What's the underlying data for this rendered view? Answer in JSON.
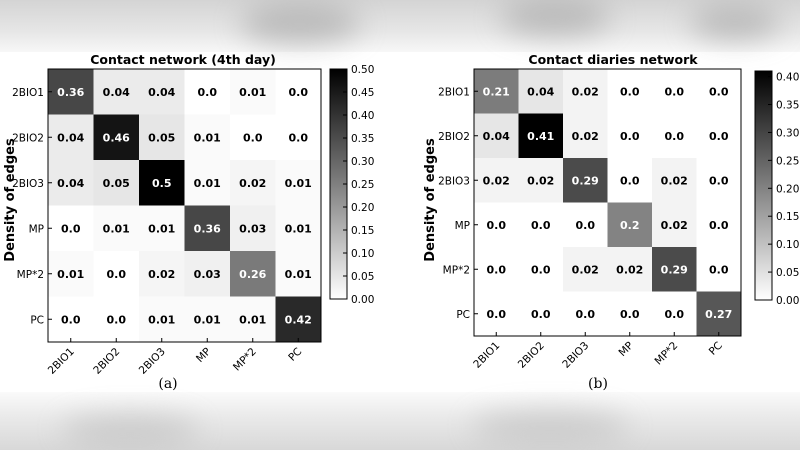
{
  "chart_data": [
    {
      "type": "heatmap",
      "title": "Contact network (4th day)",
      "ylabel": "Density of edges",
      "caption": "(a)",
      "categories": [
        "2BIO1",
        "2BIO2",
        "2BIO3",
        "MP",
        "MP*2",
        "PC"
      ],
      "values": [
        [
          0.36,
          0.04,
          0.04,
          0.0,
          0.01,
          0.0
        ],
        [
          0.04,
          0.46,
          0.05,
          0.01,
          0.0,
          0.0
        ],
        [
          0.04,
          0.05,
          0.5,
          0.01,
          0.02,
          0.01
        ],
        [
          0.0,
          0.01,
          0.01,
          0.36,
          0.03,
          0.01
        ],
        [
          0.01,
          0.0,
          0.02,
          0.03,
          0.26,
          0.01
        ],
        [
          0.0,
          0.0,
          0.01,
          0.01,
          0.01,
          0.42
        ]
      ],
      "labels": [
        [
          "0.36",
          "0.04",
          "0.04",
          "0.0",
          "0.01",
          "0.0"
        ],
        [
          "0.04",
          "0.46",
          "0.05",
          "0.01",
          "0.0",
          "0.0"
        ],
        [
          "0.04",
          "0.05",
          "0.5",
          "0.01",
          "0.02",
          "0.01"
        ],
        [
          "0.0",
          "0.01",
          "0.01",
          "0.36",
          "0.03",
          "0.01"
        ],
        [
          "0.01",
          "0.0",
          "0.02",
          "0.03",
          "0.26",
          "0.01"
        ],
        [
          "0.0",
          "0.0",
          "0.01",
          "0.01",
          "0.01",
          "0.42"
        ]
      ],
      "colorbar": {
        "min": 0.0,
        "max": 0.5,
        "ticks": [
          "0.00",
          "0.05",
          "0.10",
          "0.15",
          "0.20",
          "0.25",
          "0.30",
          "0.35",
          "0.40",
          "0.45",
          "0.50"
        ],
        "tick_values": [
          0,
          0.05,
          0.1,
          0.15,
          0.2,
          0.25,
          0.3,
          0.35,
          0.4,
          0.45,
          0.5
        ]
      }
    },
    {
      "type": "heatmap",
      "title": "Contact diaries network",
      "ylabel": "Density of edges",
      "caption": "(b)",
      "categories": [
        "2BIO1",
        "2BIO2",
        "2BIO3",
        "MP",
        "MP*2",
        "PC"
      ],
      "values": [
        [
          0.21,
          0.04,
          0.02,
          0.0,
          0.0,
          0.0
        ],
        [
          0.04,
          0.41,
          0.02,
          0.0,
          0.0,
          0.0
        ],
        [
          0.02,
          0.02,
          0.29,
          0.0,
          0.02,
          0.0
        ],
        [
          0.0,
          0.0,
          0.0,
          0.2,
          0.02,
          0.0
        ],
        [
          0.0,
          0.0,
          0.02,
          0.02,
          0.29,
          0.0
        ],
        [
          0.0,
          0.0,
          0.0,
          0.0,
          0.0,
          0.27
        ]
      ],
      "labels": [
        [
          "0.21",
          "0.04",
          "0.02",
          "0.0",
          "0.0",
          "0.0"
        ],
        [
          "0.04",
          "0.41",
          "0.02",
          "0.0",
          "0.0",
          "0.0"
        ],
        [
          "0.02",
          "0.02",
          "0.29",
          "0.0",
          "0.02",
          "0.0"
        ],
        [
          "0.0",
          "0.0",
          "0.0",
          "0.2",
          "0.02",
          "0.0"
        ],
        [
          "0.0",
          "0.0",
          "0.02",
          "0.02",
          "0.29",
          "0.0"
        ],
        [
          "0.0",
          "0.0",
          "0.0",
          "0.0",
          "0.0",
          "0.27"
        ]
      ],
      "colorbar": {
        "min": 0.0,
        "max": 0.41,
        "ticks": [
          "0.00",
          "0.05",
          "0.10",
          "0.15",
          "0.20",
          "0.25",
          "0.30",
          "0.35",
          "0.40"
        ],
        "tick_values": [
          0,
          0.05,
          0.1,
          0.15,
          0.2,
          0.25,
          0.3,
          0.35,
          0.4
        ]
      }
    }
  ]
}
